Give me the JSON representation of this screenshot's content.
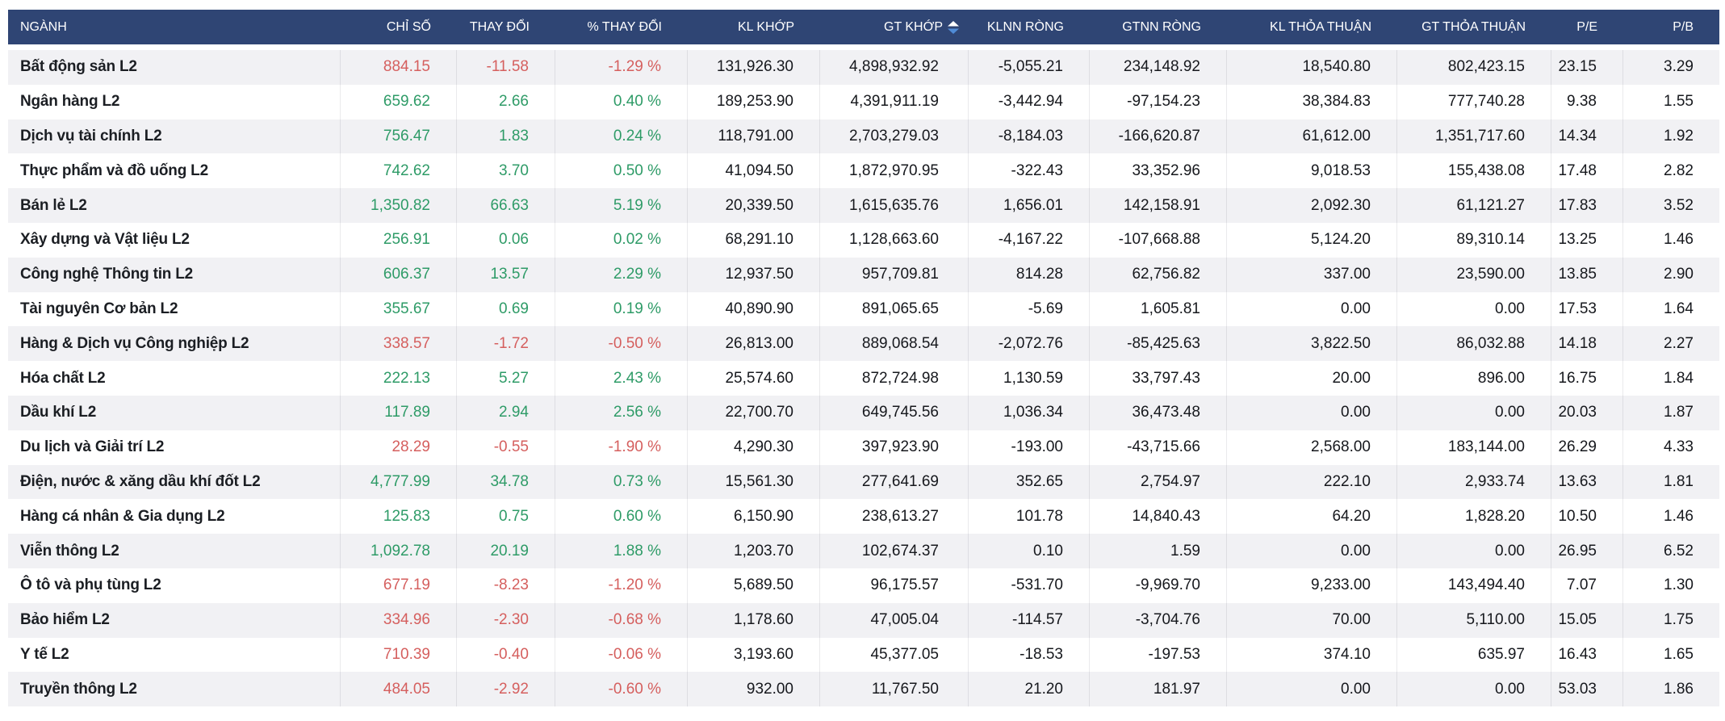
{
  "table": {
    "columns": [
      {
        "key": "name",
        "label": "NGÀNH",
        "align": "left",
        "colored": false,
        "sorted": false
      },
      {
        "key": "index",
        "label": "CHỈ SỐ",
        "align": "right",
        "colored": true,
        "sorted": false
      },
      {
        "key": "change",
        "label": "THAY ĐỔI",
        "align": "right",
        "colored": true,
        "sorted": false
      },
      {
        "key": "change_pct",
        "label": "% THAY ĐỔI",
        "align": "right",
        "colored": true,
        "sorted": false
      },
      {
        "key": "kl_khop",
        "label": "KL KHỚP",
        "align": "right",
        "colored": false,
        "sorted": false
      },
      {
        "key": "gt_khop",
        "label": "GT KHỚP",
        "align": "right",
        "colored": false,
        "sorted": true
      },
      {
        "key": "klnn_rong",
        "label": "KLNN RÒNG",
        "align": "right",
        "colored": false,
        "sorted": false
      },
      {
        "key": "gtnn_rong",
        "label": "GTNN RÒNG",
        "align": "right",
        "colored": false,
        "sorted": false
      },
      {
        "key": "kl_thoa_thuan",
        "label": "KL THỎA THUẬN",
        "align": "right",
        "colored": false,
        "sorted": false
      },
      {
        "key": "gt_thoa_thuan",
        "label": "GT THỎA THUẬN",
        "align": "right",
        "colored": false,
        "sorted": false
      },
      {
        "key": "pe",
        "label": "P/E",
        "align": "right",
        "colored": false,
        "sorted": false
      },
      {
        "key": "pb",
        "label": "P/B",
        "align": "right",
        "colored": false,
        "sorted": false
      }
    ],
    "rows": [
      {
        "name": "Bất động sản L2",
        "index": "884.15",
        "change": "-11.58",
        "change_pct": "-1.29 %",
        "kl_khop": "131,926.30",
        "gt_khop": "4,898,932.92",
        "klnn_rong": "-5,055.21",
        "gtnn_rong": "234,148.92",
        "kl_thoa_thuan": "18,540.80",
        "gt_thoa_thuan": "802,423.15",
        "pe": "23.15",
        "pb": "3.29",
        "trend": "down"
      },
      {
        "name": "Ngân hàng L2",
        "index": "659.62",
        "change": "2.66",
        "change_pct": "0.40 %",
        "kl_khop": "189,253.90",
        "gt_khop": "4,391,911.19",
        "klnn_rong": "-3,442.94",
        "gtnn_rong": "-97,154.23",
        "kl_thoa_thuan": "38,384.83",
        "gt_thoa_thuan": "777,740.28",
        "pe": "9.38",
        "pb": "1.55",
        "trend": "up"
      },
      {
        "name": "Dịch vụ tài chính L2",
        "index": "756.47",
        "change": "1.83",
        "change_pct": "0.24 %",
        "kl_khop": "118,791.00",
        "gt_khop": "2,703,279.03",
        "klnn_rong": "-8,184.03",
        "gtnn_rong": "-166,620.87",
        "kl_thoa_thuan": "61,612.00",
        "gt_thoa_thuan": "1,351,717.60",
        "pe": "14.34",
        "pb": "1.92",
        "trend": "up"
      },
      {
        "name": "Thực phẩm và đồ uống L2",
        "index": "742.62",
        "change": "3.70",
        "change_pct": "0.50 %",
        "kl_khop": "41,094.50",
        "gt_khop": "1,872,970.95",
        "klnn_rong": "-322.43",
        "gtnn_rong": "33,352.96",
        "kl_thoa_thuan": "9,018.53",
        "gt_thoa_thuan": "155,438.08",
        "pe": "17.48",
        "pb": "2.82",
        "trend": "up"
      },
      {
        "name": "Bán lẻ L2",
        "index": "1,350.82",
        "change": "66.63",
        "change_pct": "5.19 %",
        "kl_khop": "20,339.50",
        "gt_khop": "1,615,635.76",
        "klnn_rong": "1,656.01",
        "gtnn_rong": "142,158.91",
        "kl_thoa_thuan": "2,092.30",
        "gt_thoa_thuan": "61,121.27",
        "pe": "17.83",
        "pb": "3.52",
        "trend": "up"
      },
      {
        "name": "Xây dựng và Vật liệu L2",
        "index": "256.91",
        "change": "0.06",
        "change_pct": "0.02 %",
        "kl_khop": "68,291.10",
        "gt_khop": "1,128,663.60",
        "klnn_rong": "-4,167.22",
        "gtnn_rong": "-107,668.88",
        "kl_thoa_thuan": "5,124.20",
        "gt_thoa_thuan": "89,310.14",
        "pe": "13.25",
        "pb": "1.46",
        "trend": "up"
      },
      {
        "name": "Công nghệ Thông tin L2",
        "index": "606.37",
        "change": "13.57",
        "change_pct": "2.29 %",
        "kl_khop": "12,937.50",
        "gt_khop": "957,709.81",
        "klnn_rong": "814.28",
        "gtnn_rong": "62,756.82",
        "kl_thoa_thuan": "337.00",
        "gt_thoa_thuan": "23,590.00",
        "pe": "13.85",
        "pb": "2.90",
        "trend": "up"
      },
      {
        "name": "Tài nguyên Cơ bản L2",
        "index": "355.67",
        "change": "0.69",
        "change_pct": "0.19 %",
        "kl_khop": "40,890.90",
        "gt_khop": "891,065.65",
        "klnn_rong": "-5.69",
        "gtnn_rong": "1,605.81",
        "kl_thoa_thuan": "0.00",
        "gt_thoa_thuan": "0.00",
        "pe": "17.53",
        "pb": "1.64",
        "trend": "up"
      },
      {
        "name": "Hàng & Dịch vụ Công nghiệp L2",
        "index": "338.57",
        "change": "-1.72",
        "change_pct": "-0.50 %",
        "kl_khop": "26,813.00",
        "gt_khop": "889,068.54",
        "klnn_rong": "-2,072.76",
        "gtnn_rong": "-85,425.63",
        "kl_thoa_thuan": "3,822.50",
        "gt_thoa_thuan": "86,032.88",
        "pe": "14.18",
        "pb": "2.27",
        "trend": "down"
      },
      {
        "name": "Hóa chất L2",
        "index": "222.13",
        "change": "5.27",
        "change_pct": "2.43 %",
        "kl_khop": "25,574.60",
        "gt_khop": "872,724.98",
        "klnn_rong": "1,130.59",
        "gtnn_rong": "33,797.43",
        "kl_thoa_thuan": "20.00",
        "gt_thoa_thuan": "896.00",
        "pe": "16.75",
        "pb": "1.84",
        "trend": "up"
      },
      {
        "name": "Dầu khí L2",
        "index": "117.89",
        "change": "2.94",
        "change_pct": "2.56 %",
        "kl_khop": "22,700.70",
        "gt_khop": "649,745.56",
        "klnn_rong": "1,036.34",
        "gtnn_rong": "36,473.48",
        "kl_thoa_thuan": "0.00",
        "gt_thoa_thuan": "0.00",
        "pe": "20.03",
        "pb": "1.87",
        "trend": "up"
      },
      {
        "name": "Du lịch và Giải trí L2",
        "index": "28.29",
        "change": "-0.55",
        "change_pct": "-1.90 %",
        "kl_khop": "4,290.30",
        "gt_khop": "397,923.90",
        "klnn_rong": "-193.00",
        "gtnn_rong": "-43,715.66",
        "kl_thoa_thuan": "2,568.00",
        "gt_thoa_thuan": "183,144.00",
        "pe": "26.29",
        "pb": "4.33",
        "trend": "down"
      },
      {
        "name": "Điện, nước & xăng dầu khí đốt L2",
        "index": "4,777.99",
        "change": "34.78",
        "change_pct": "0.73 %",
        "kl_khop": "15,561.30",
        "gt_khop": "277,641.69",
        "klnn_rong": "352.65",
        "gtnn_rong": "2,754.97",
        "kl_thoa_thuan": "222.10",
        "gt_thoa_thuan": "2,933.74",
        "pe": "13.63",
        "pb": "1.81",
        "trend": "up"
      },
      {
        "name": "Hàng cá nhân & Gia dụng L2",
        "index": "125.83",
        "change": "0.75",
        "change_pct": "0.60 %",
        "kl_khop": "6,150.90",
        "gt_khop": "238,613.27",
        "klnn_rong": "101.78",
        "gtnn_rong": "14,840.43",
        "kl_thoa_thuan": "64.20",
        "gt_thoa_thuan": "1,828.20",
        "pe": "10.50",
        "pb": "1.46",
        "trend": "up"
      },
      {
        "name": "Viễn thông L2",
        "index": "1,092.78",
        "change": "20.19",
        "change_pct": "1.88 %",
        "kl_khop": "1,203.70",
        "gt_khop": "102,674.37",
        "klnn_rong": "0.10",
        "gtnn_rong": "1.59",
        "kl_thoa_thuan": "0.00",
        "gt_thoa_thuan": "0.00",
        "pe": "26.95",
        "pb": "6.52",
        "trend": "up"
      },
      {
        "name": "Ô tô và phụ tùng L2",
        "index": "677.19",
        "change": "-8.23",
        "change_pct": "-1.20 %",
        "kl_khop": "5,689.50",
        "gt_khop": "96,175.57",
        "klnn_rong": "-531.70",
        "gtnn_rong": "-9,969.70",
        "kl_thoa_thuan": "9,233.00",
        "gt_thoa_thuan": "143,494.40",
        "pe": "7.07",
        "pb": "1.30",
        "trend": "down"
      },
      {
        "name": "Bảo hiểm L2",
        "index": "334.96",
        "change": "-2.30",
        "change_pct": "-0.68 %",
        "kl_khop": "1,178.60",
        "gt_khop": "47,005.04",
        "klnn_rong": "-114.57",
        "gtnn_rong": "-3,704.76",
        "kl_thoa_thuan": "70.00",
        "gt_thoa_thuan": "5,110.00",
        "pe": "15.05",
        "pb": "1.75",
        "trend": "down"
      },
      {
        "name": "Y tế L2",
        "index": "710.39",
        "change": "-0.40",
        "change_pct": "-0.06 %",
        "kl_khop": "3,193.60",
        "gt_khop": "45,377.05",
        "klnn_rong": "-18.53",
        "gtnn_rong": "-197.53",
        "kl_thoa_thuan": "374.10",
        "gt_thoa_thuan": "635.97",
        "pe": "16.43",
        "pb": "1.65",
        "trend": "down"
      },
      {
        "name": "Truyền thông L2",
        "index": "484.05",
        "change": "-2.92",
        "change_pct": "-0.60 %",
        "kl_khop": "932.00",
        "gt_khop": "11,767.50",
        "klnn_rong": "21.20",
        "gtnn_rong": "181.97",
        "kl_thoa_thuan": "0.00",
        "gt_thoa_thuan": "0.00",
        "pe": "53.03",
        "pb": "1.86",
        "trend": "down"
      }
    ]
  },
  "colors": {
    "header_bg": "#2f4574",
    "header_text": "#ffffff",
    "row_stripe": "#f1f1f4",
    "row_plain": "#ffffff",
    "positive": "#2e9b67",
    "negative": "#d55f5e",
    "sort_arrow_up": "#ffffff",
    "sort_arrow_down": "#4f8bd6"
  }
}
